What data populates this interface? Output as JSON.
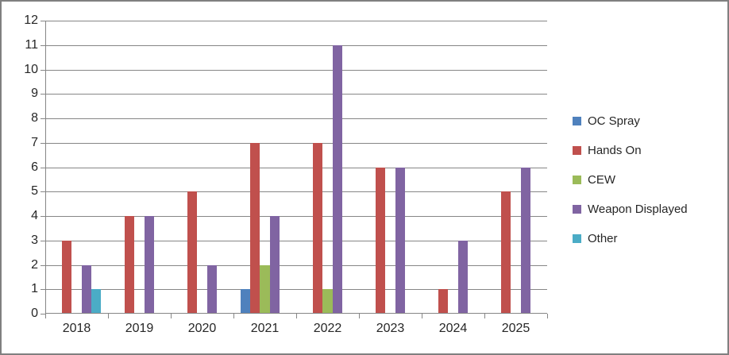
{
  "figure": {
    "background": "#FFFFFF",
    "border_color": "#808080",
    "axis_color": "#868686",
    "gridline_color": "#868686",
    "label_color": "#262626"
  },
  "chart_data": {
    "type": "bar",
    "title": "",
    "xlabel": "",
    "ylabel": "",
    "categories": [
      "2018",
      "2019",
      "2020",
      "2021",
      "2022",
      "2023",
      "2024",
      "2025"
    ],
    "series": [
      {
        "name": "OC Spray",
        "color": "#4F81BD",
        "values": [
          0,
          0,
          0,
          1,
          0,
          0,
          0,
          0
        ]
      },
      {
        "name": "Hands On",
        "color": "#C0504D",
        "values": [
          3,
          4,
          5,
          7,
          7,
          6,
          1,
          5
        ]
      },
      {
        "name": "CEW",
        "color": "#9BBB59",
        "values": [
          0,
          0,
          0,
          2,
          1,
          0,
          0,
          0
        ]
      },
      {
        "name": "Weapon Displayed",
        "color": "#8064A2",
        "values": [
          2,
          4,
          2,
          4,
          11,
          6,
          3,
          6
        ]
      },
      {
        "name": "Other",
        "color": "#4BACC6",
        "values": [
          1,
          0,
          0,
          0,
          0,
          0,
          0,
          0
        ]
      }
    ],
    "ylim": [
      0,
      12
    ],
    "ytick_step": 1,
    "y_tick_labels": [
      "0",
      "1",
      "2",
      "3",
      "4",
      "5",
      "6",
      "7",
      "8",
      "9",
      "10",
      "11",
      "12"
    ],
    "grid": true,
    "legend_position": "right"
  }
}
